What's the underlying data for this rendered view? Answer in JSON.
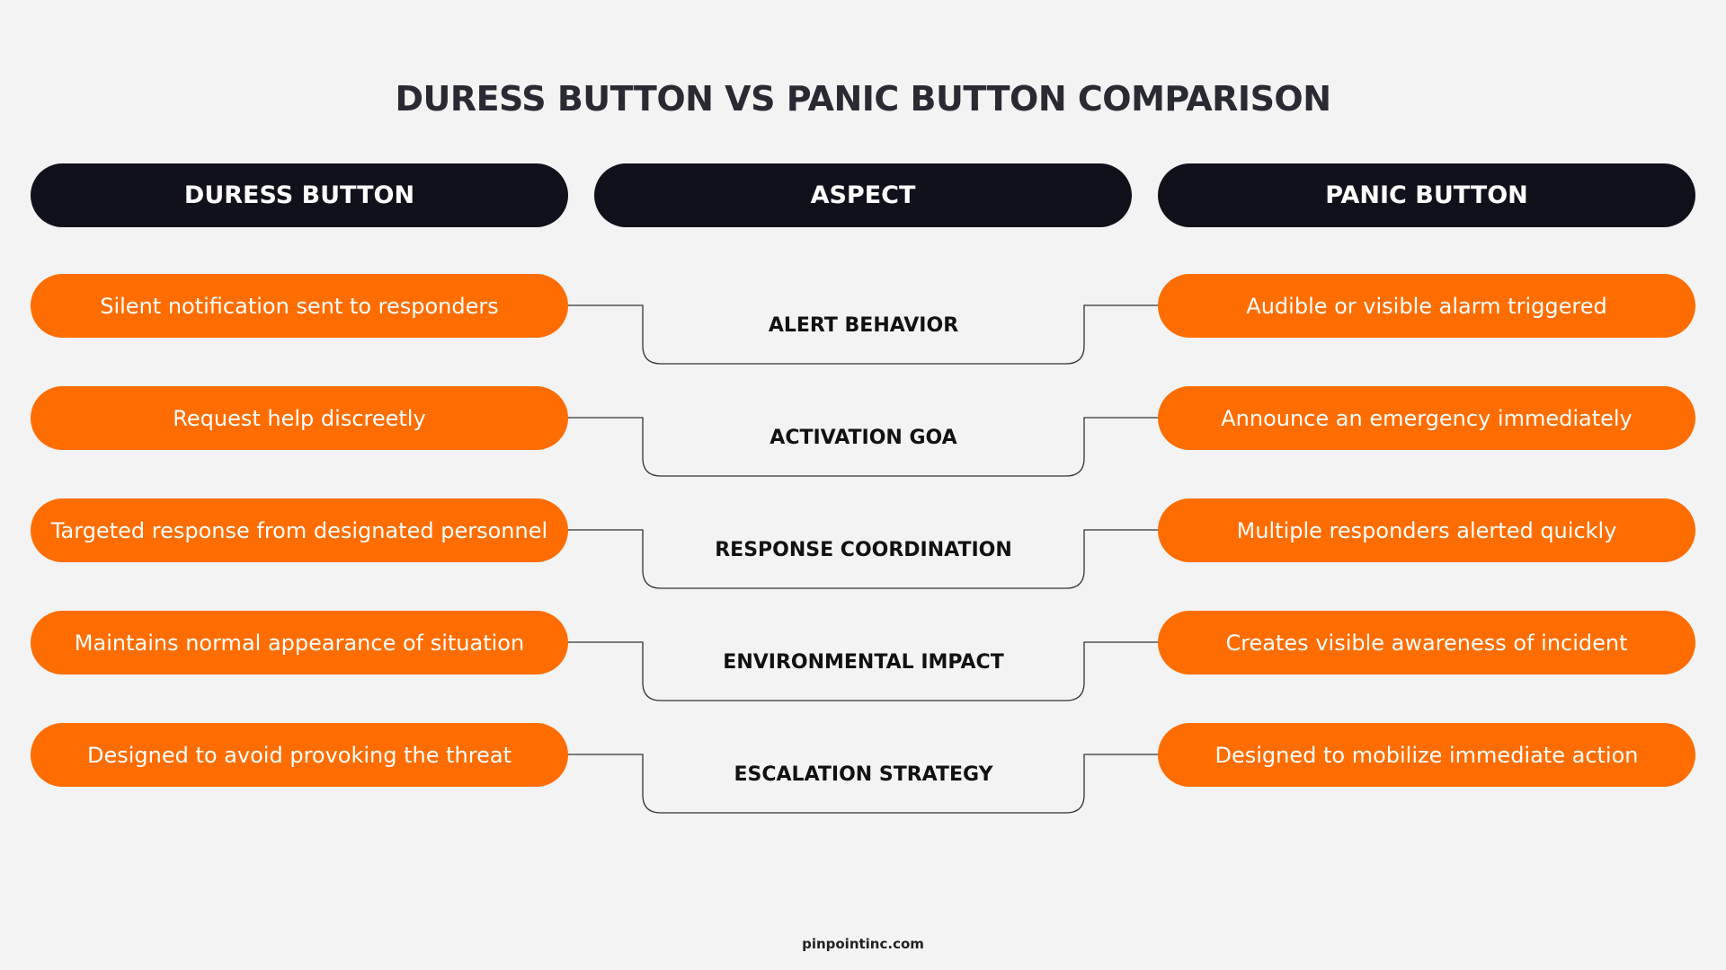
{
  "title": "DURESS BUTTON VS PANIC BUTTON COMPARISON",
  "headers": {
    "left": "DURESS BUTTON",
    "middle": "ASPECT",
    "right": "PANIC BUTTON"
  },
  "rows": [
    {
      "duress": "Silent notification sent to responders",
      "aspect": "ALERT BEHAVIOR",
      "panic": "Audible or visible alarm triggered"
    },
    {
      "duress": "Request help discreetly",
      "aspect": "ACTIVATION GOA",
      "panic": "Announce an emergency immediately"
    },
    {
      "duress": "Targeted response from designated personnel",
      "aspect": "RESPONSE COORDINATION",
      "panic": "Multiple responders alerted quickly"
    },
    {
      "duress": "Maintains normal appearance of situation",
      "aspect": "ENVIRONMENTAL IMPACT",
      "panic": "Creates visible awareness of incident"
    },
    {
      "duress": "Designed to avoid provoking the threat",
      "aspect": "ESCALATION STRATEGY",
      "panic": "Designed to mobilize immediate action"
    }
  ],
  "footer": "pinpointinc.com",
  "colors": {
    "header_bg": "#10111b",
    "pill_bg": "#ff6d00",
    "background": "#f3f3f3"
  }
}
